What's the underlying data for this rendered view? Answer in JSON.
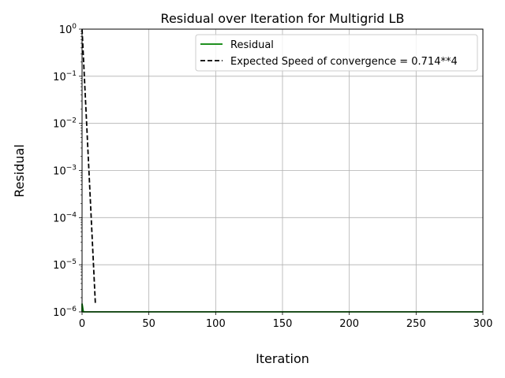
{
  "chart_data": {
    "type": "line",
    "title": "Residual over Iteration for Multigrid LB",
    "xlabel": "Iteration",
    "ylabel": "Residual",
    "xlim": [
      0,
      300
    ],
    "ylim": [
      1e-06,
      1
    ],
    "yscale": "log",
    "grid": true,
    "legend_position": "top-right",
    "x_ticks": [
      0,
      50,
      100,
      150,
      200,
      250,
      300
    ],
    "y_ticks": [
      {
        "value": 1e-06,
        "base": "10",
        "exp": "−6"
      },
      {
        "value": 1e-05,
        "base": "10",
        "exp": "−5"
      },
      {
        "value": 0.0001,
        "base": "10",
        "exp": "−4"
      },
      {
        "value": 0.001,
        "base": "10",
        "exp": "−3"
      },
      {
        "value": 0.01,
        "base": "10",
        "exp": "−2"
      },
      {
        "value": 0.1,
        "base": "10",
        "exp": "−1"
      },
      {
        "value": 1,
        "base": "10",
        "exp": "0"
      }
    ],
    "series": [
      {
        "name": "Residual",
        "color": "#008000",
        "style": "solid",
        "x": [
          0,
          0,
          1,
          300
        ],
        "y": [
          1e-06,
          1.5e-06,
          1e-06,
          1e-06
        ]
      },
      {
        "name": "Expected Speed of convergence = 0.714**4",
        "color": "#000000",
        "style": "dashed",
        "x": [
          0,
          1,
          2,
          3,
          4,
          5,
          6,
          7,
          8,
          9,
          10
        ],
        "y": [
          1.0,
          0.26,
          0.0676,
          0.0176,
          0.00457,
          0.00119,
          0.000309,
          8.03e-05,
          2.09e-05,
          5.43e-06,
          1.41e-06
        ]
      }
    ]
  }
}
